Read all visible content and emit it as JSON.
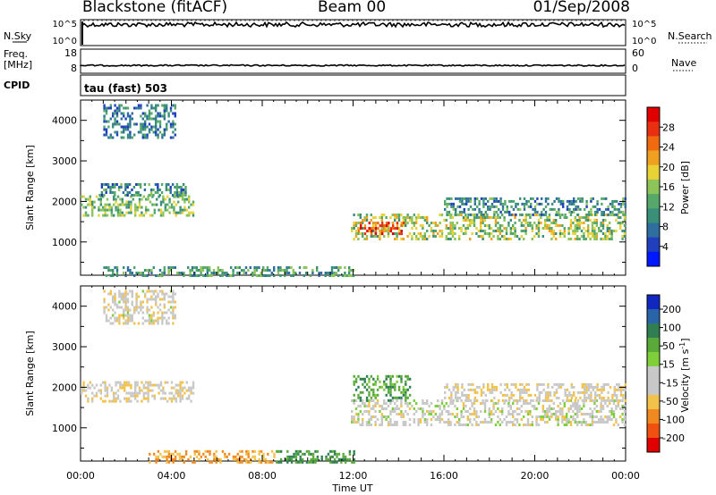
{
  "header": {
    "title": "Blackstone (fitACF)",
    "beam": "Beam 00",
    "date": "01/Sep/2008"
  },
  "summary": {
    "nsky_label": "N.Sky",
    "nsearch_label": "N.Search",
    "noise_ticks": [
      "10^5",
      "10^0"
    ],
    "freq_label": "Freq.",
    "freq_unit": "[MHz]",
    "freq_ticks": [
      "18",
      "8"
    ],
    "nave_label": "Nave",
    "nave_ticks": [
      "60",
      "0"
    ],
    "cpid_label": "CPID",
    "cpid_value": "tau (fast) 503"
  },
  "colors": {
    "power_scale": [
      "#0018ff",
      "#1f3fbf",
      "#2e6fa0",
      "#3a8f78",
      "#55a86a",
      "#8cc45a",
      "#e8d236",
      "#f0a020",
      "#f06a10",
      "#e83010",
      "#e00000"
    ],
    "velocity_scale": [
      "#1028c0",
      "#2a64a8",
      "#2f7f52",
      "#5aaa3a",
      "#7fcf3a",
      "#c8c8c8",
      "#c8c8c8",
      "#f3c24a",
      "#f08a20",
      "#f05010",
      "#e00000"
    ]
  },
  "chart_data": [
    {
      "type": "heatmap",
      "panel": "power",
      "ylabel": "Slant Range [km]",
      "ylim": [
        180,
        4500
      ],
      "yticks": [
        "1000",
        "2000",
        "3000",
        "4000"
      ],
      "xlim": [
        "00:00",
        "24:00"
      ],
      "colorbar": {
        "label": "Power [dB]",
        "range": [
          0,
          32
        ],
        "ticks": [
          "4",
          "8",
          "12",
          "16",
          "20",
          "24",
          "28"
        ]
      },
      "regions": [
        {
          "t0": 0.0,
          "t1": 5.0,
          "r0": 1650,
          "r1": 2150,
          "level": 0.45
        },
        {
          "t0": 0.8,
          "t1": 4.6,
          "r0": 2150,
          "r1": 2450,
          "level": 0.3
        },
        {
          "t0": 1.0,
          "t1": 4.2,
          "r0": 3600,
          "r1": 4400,
          "level": 0.25
        },
        {
          "t0": 11.9,
          "t1": 24.0,
          "r0": 1050,
          "r1": 1700,
          "level": 0.5
        },
        {
          "t0": 12.2,
          "t1": 14.2,
          "r0": 1200,
          "r1": 1500,
          "level": 0.85
        },
        {
          "t0": 16.0,
          "t1": 24.0,
          "r0": 1700,
          "r1": 2100,
          "level": 0.3
        },
        {
          "t0": 1.0,
          "t1": 12.0,
          "r0": 180,
          "r1": 400,
          "level": 0.35
        }
      ]
    },
    {
      "type": "heatmap",
      "panel": "velocity",
      "ylabel": "Slant Range [km]",
      "xlabel": "Time UT",
      "ylim": [
        180,
        4500
      ],
      "yticks": [
        "1000",
        "2000",
        "3000",
        "4000"
      ],
      "xticks": [
        "00:00",
        "04:00",
        "08:00",
        "12:00",
        "16:00",
        "20:00",
        "00:00"
      ],
      "colorbar": {
        "label": "Velocity [m s^-1]",
        "ticks": [
          "200",
          "100",
          "50",
          "15",
          "-15",
          "-50",
          "-100",
          "-200"
        ]
      },
      "regions": [
        {
          "t0": 0.0,
          "t1": 5.0,
          "r0": 1650,
          "r1": 2150,
          "vel": -10
        },
        {
          "t0": 1.0,
          "t1": 4.2,
          "r0": 3600,
          "r1": 4400,
          "vel": -8
        },
        {
          "t0": 11.9,
          "t1": 24.0,
          "r0": 1050,
          "r1": 1700,
          "vel": -5
        },
        {
          "t0": 12.0,
          "t1": 14.5,
          "r0": 1700,
          "r1": 2300,
          "vel": 25
        },
        {
          "t0": 16.0,
          "t1": 24.0,
          "r0": 1700,
          "r1": 2100,
          "vel": -12
        },
        {
          "t0": 3.0,
          "t1": 8.5,
          "r0": 180,
          "r1": 450,
          "vel": -40
        },
        {
          "t0": 8.5,
          "t1": 12.0,
          "r0": 180,
          "r1": 450,
          "vel": 30
        }
      ]
    }
  ]
}
